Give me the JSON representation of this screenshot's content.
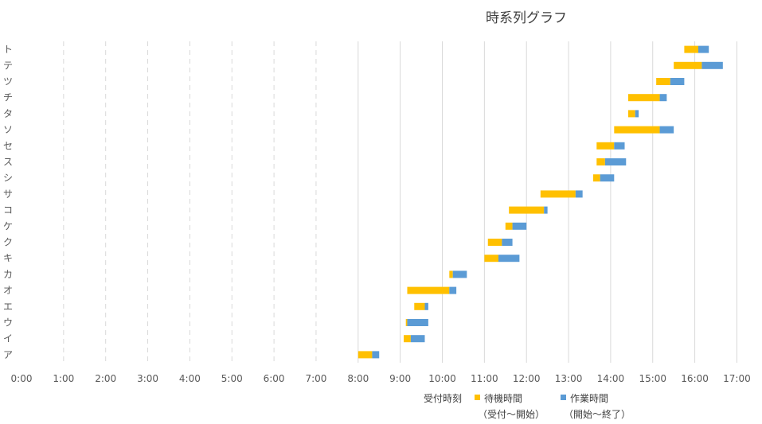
{
  "chart_data": {
    "type": "bar",
    "orientation": "horizontal",
    "stacked": true,
    "title": "時系列グラフ",
    "xlabel": "",
    "ylabel": "",
    "xlim": [
      0,
      17
    ],
    "x_ticks": [
      "0:00",
      "1:00",
      "2:00",
      "3:00",
      "4:00",
      "5:00",
      "6:00",
      "7:00",
      "8:00",
      "9:00",
      "10:00",
      "11:00",
      "12:00",
      "13:00",
      "14:00",
      "15:00",
      "16:00",
      "17:00"
    ],
    "grid": "vertical dashed",
    "categories": [
      "ア",
      "イ",
      "ウ",
      "エ",
      "オ",
      "カ",
      "キ",
      "ク",
      "ケ",
      "コ",
      "サ",
      "シ",
      "ス",
      "セ",
      "ソ",
      "タ",
      "チ",
      "ツ",
      "テ",
      "ト"
    ],
    "series": [
      {
        "name": "受付時刻",
        "color": "none",
        "values": [
          "8:00",
          "9:05",
          "9:08",
          "9:20",
          "9:10",
          "10:10",
          "11:00",
          "11:05",
          "11:30",
          "11:35",
          "12:20",
          "13:35",
          "13:40",
          "13:40",
          "14:05",
          "14:25",
          "14:25",
          "15:05",
          "15:30",
          "15:45"
        ]
      },
      {
        "name": "待機時間（受付～開始）",
        "color": "#FFC000",
        "values": [
          "0:20",
          "0:10",
          "0:02",
          "0:15",
          "1:00",
          "0:05",
          "0:20",
          "0:20",
          "0:10",
          "0:50",
          "0:50",
          "0:10",
          "0:12",
          "0:25",
          "1:05",
          "0:10",
          "0:45",
          "0:20",
          "0:40",
          "0:20"
        ]
      },
      {
        "name": "作業時間（開始～終了）",
        "color": "#5B9BD5",
        "values": [
          "0:10",
          "0:20",
          "0:30",
          "0:05",
          "0:10",
          "0:20",
          "0:30",
          "0:15",
          "0:20",
          "0:05",
          "0:10",
          "0:20",
          "0:30",
          "0:15",
          "0:20",
          "0:05",
          "0:10",
          "0:20",
          "0:30",
          "0:15"
        ]
      }
    ],
    "legend": {
      "position": "bottom",
      "items": [
        {
          "label": "受付時刻",
          "sub": "",
          "color": "none"
        },
        {
          "label": "待機時間",
          "sub": "（受付～開始）",
          "color": "#FFC000"
        },
        {
          "label": "作業時間",
          "sub": "（開始～終了）",
          "color": "#5B9BD5"
        }
      ]
    }
  }
}
